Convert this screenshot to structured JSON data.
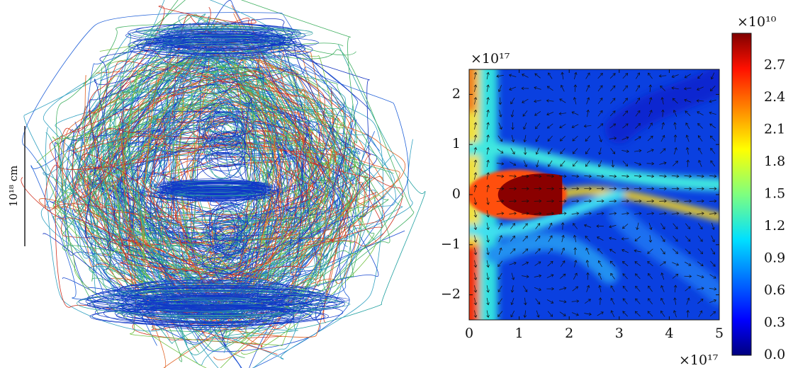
{
  "left_panel": {
    "scale_label": "10¹⁸ cm"
  },
  "heatmap": {
    "type": "heatmap",
    "x_multiplier": "×10¹⁷",
    "y_multiplier": "×10¹⁷",
    "xlim": [
      0,
      5
    ],
    "ylim": [
      -2.5,
      2.5
    ],
    "xticks": [
      0,
      1,
      2,
      3,
      4,
      5
    ],
    "yticks": [
      {
        "value": -2,
        "label": "−2"
      },
      {
        "value": -1,
        "label": "−1"
      },
      0,
      1,
      2
    ],
    "colorbar": {
      "multiplier": "×10¹⁰",
      "lim": [
        0,
        3
      ],
      "ticks": [
        {
          "value": 0,
          "label": "0.0"
        },
        0.3,
        0.6,
        0.9,
        1.2,
        1.5,
        1.8,
        2.1,
        2.4,
        2.7
      ]
    }
  }
}
